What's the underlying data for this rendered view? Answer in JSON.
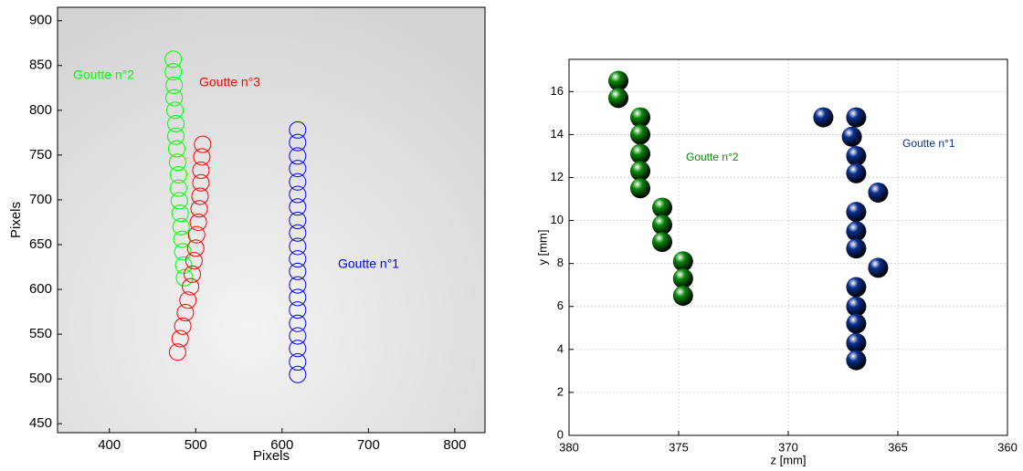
{
  "chart_data": [
    {
      "type": "scatter",
      "xlabel": "Pixels",
      "ylabel": "Pixels",
      "xlim": [
        340,
        835
      ],
      "ylim": [
        440,
        915
      ],
      "xticks": [
        400,
        500,
        600,
        700,
        800
      ],
      "yticks": [
        450,
        500,
        550,
        600,
        650,
        700,
        750,
        800,
        850,
        900
      ],
      "grid": false,
      "series": [
        {
          "name": "Goutte n°1",
          "color": "#0000ff",
          "x": [
            618,
            618,
            618,
            618,
            618,
            618,
            618,
            618,
            618,
            618,
            618,
            618,
            618,
            618,
            618,
            618,
            618,
            618,
            618,
            618
          ],
          "y": [
            778,
            764,
            749,
            735,
            720,
            706,
            692,
            677,
            663,
            648,
            634,
            620,
            605,
            591,
            577,
            562,
            548,
            534,
            519,
            505
          ]
        },
        {
          "name": "Goutte n°2",
          "color": "#00ff00",
          "x": [
            474,
            474,
            475,
            475,
            476,
            477,
            477,
            478,
            479,
            480,
            480,
            481,
            482,
            483,
            484,
            485,
            486,
            487
          ],
          "y": [
            857,
            843,
            828,
            814,
            800,
            785,
            771,
            757,
            742,
            728,
            713,
            699,
            685,
            670,
            656,
            642,
            627,
            613
          ]
        },
        {
          "name": "Goutte n°3",
          "color": "#ff0000",
          "x": [
            508,
            507,
            506,
            506,
            505,
            504,
            503,
            501,
            500,
            498,
            496,
            494,
            491,
            488,
            485,
            482,
            479
          ],
          "y": [
            762,
            748,
            733,
            719,
            704,
            690,
            675,
            661,
            646,
            632,
            617,
            603,
            588,
            574,
            559,
            545,
            530
          ]
        }
      ]
    },
    {
      "type": "scatter",
      "xlabel": "z [mm]",
      "ylabel": "y [mm]",
      "xlim": [
        380,
        360
      ],
      "ylim": [
        0,
        17.5
      ],
      "xticks": [
        380,
        375,
        370,
        365,
        360
      ],
      "yticks": [
        0,
        2,
        4,
        6,
        8,
        10,
        12,
        14,
        16
      ],
      "grid": true,
      "series": [
        {
          "name": "Goutte n°1",
          "color": "#0b2f8f",
          "x": [
            368.4,
            366.9,
            367.1,
            366.9,
            366.9,
            366.9,
            366.9,
            366.9,
            366.9,
            366.9,
            366.9,
            366.9,
            366.9,
            365.9,
            365.9
          ],
          "y": [
            14.8,
            14.8,
            13.9,
            13.0,
            12.2,
            10.4,
            9.5,
            8.7,
            6.9,
            6.0,
            5.2,
            4.3,
            3.5,
            11.3,
            7.8
          ]
        },
        {
          "name": "Goutte n°2",
          "color": "#0b8a0b",
          "x": [
            377.75,
            377.75,
            376.75,
            376.75,
            376.75,
            376.75,
            376.75,
            375.75,
            375.75,
            375.75,
            374.8,
            374.8,
            374.8
          ],
          "y": [
            16.5,
            15.7,
            14.8,
            14.0,
            13.1,
            12.3,
            11.5,
            10.6,
            9.8,
            9.0,
            8.1,
            7.3,
            6.5
          ]
        }
      ]
    }
  ]
}
